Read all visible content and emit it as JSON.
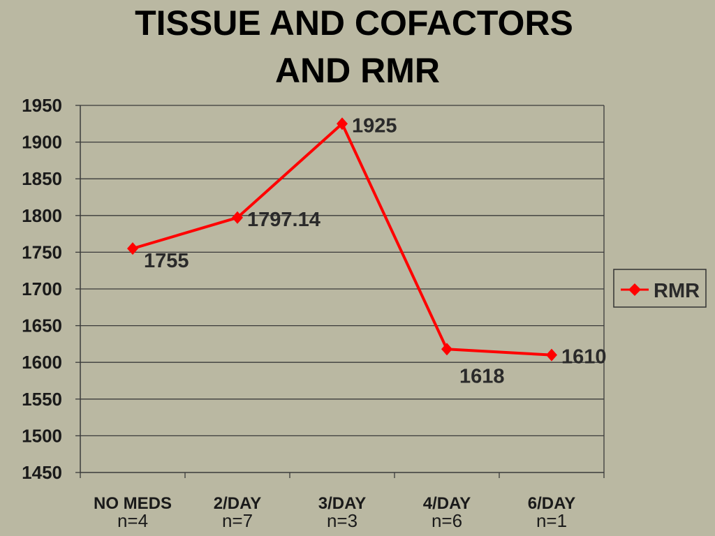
{
  "chart_data": {
    "type": "line",
    "title": [
      "TISSUE AND COFACTORS",
      "AND RMR"
    ],
    "categories": [
      "NO MEDS",
      "2/DAY",
      "3/DAY",
      "4/DAY",
      "6/DAY"
    ],
    "category_sublabels": [
      "n=4",
      "n=7",
      "n=3",
      "n=6",
      "n=1"
    ],
    "series": [
      {
        "name": "RMR",
        "values": [
          1755,
          1797.14,
          1925,
          1618,
          1610
        ],
        "labels": [
          "1755",
          "1797.14",
          "1925",
          "1618",
          "1610"
        ],
        "color": "#FF0000"
      }
    ],
    "ylim": [
      1450,
      1950
    ],
    "yticks": [
      "1950",
      "1900",
      "1850",
      "1800",
      "1750",
      "1700",
      "1650",
      "1600",
      "1550",
      "1500",
      "1450"
    ],
    "grid": true,
    "legend": "right"
  }
}
